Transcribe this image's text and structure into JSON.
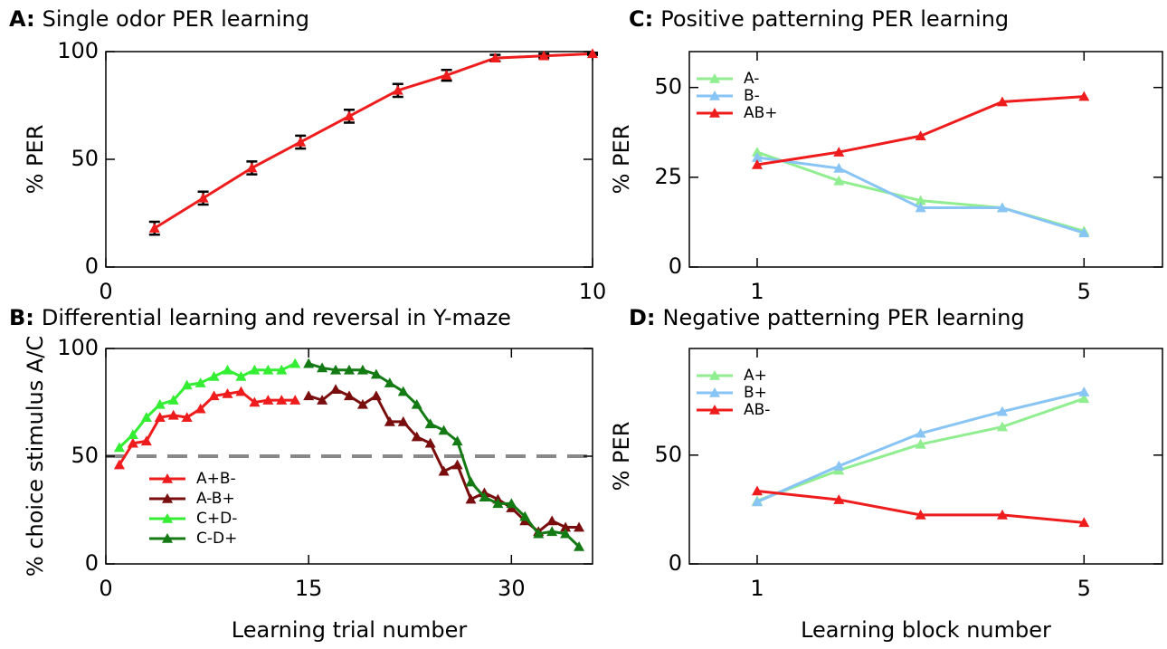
{
  "chart_data": [
    {
      "type": "line",
      "panel": "A:",
      "title": "Single odor PER learning",
      "y_label": "% PER",
      "x": [
        1,
        2,
        3,
        4,
        5,
        6,
        7,
        8,
        9,
        10
      ],
      "series": [
        {
          "name": "PER",
          "color": "#ee1c1c",
          "values": [
            18,
            32,
            46,
            58,
            70,
            82,
            89,
            97,
            98,
            99
          ],
          "errors": [
            3,
            3,
            3,
            3,
            3,
            3,
            2.5,
            1.5,
            1,
            0.5
          ]
        }
      ],
      "xlim": [
        0,
        10
      ],
      "xticks": [
        0,
        10
      ],
      "ylim": [
        0,
        100
      ],
      "yticks": [
        0,
        50,
        100
      ],
      "grid": false
    },
    {
      "type": "line",
      "panel": "B:",
      "title": "Differential learning and reversal in Y-maze",
      "y_label": "% choice stimulus A/C",
      "x_label": "Learning trial number",
      "x": [
        1,
        2,
        3,
        4,
        5,
        6,
        7,
        8,
        9,
        10,
        11,
        12,
        13,
        14,
        15,
        16,
        17,
        18,
        19,
        20,
        21,
        22,
        23,
        24,
        25,
        26,
        27,
        28,
        29,
        30,
        31,
        32,
        33,
        34,
        35
      ],
      "series": [
        {
          "name": "A+B-",
          "color": "#ee1c1c",
          "values": [
            46,
            56,
            57,
            68,
            69,
            68,
            72,
            78,
            79,
            80,
            75,
            76,
            76,
            76,
            null,
            null,
            null,
            null,
            null,
            null,
            null,
            null,
            null,
            null,
            null,
            null,
            null,
            null,
            null,
            null,
            null,
            null,
            null,
            null,
            null
          ]
        },
        {
          "name": "A-B+",
          "color": "#7a0e0e",
          "values": [
            null,
            null,
            null,
            null,
            null,
            null,
            null,
            null,
            null,
            null,
            null,
            null,
            null,
            null,
            78,
            76,
            81,
            78,
            74,
            78,
            66,
            66,
            59,
            56,
            43,
            46,
            30,
            33,
            30,
            26,
            20,
            15,
            20,
            17,
            17
          ]
        },
        {
          "name": "C+D-",
          "color": "#33ee33",
          "values": [
            54,
            60,
            68,
            74,
            76,
            83,
            84,
            87,
            90,
            87,
            90,
            90,
            90,
            93,
            null,
            null,
            null,
            null,
            null,
            null,
            null,
            null,
            null,
            null,
            null,
            null,
            null,
            null,
            null,
            null,
            null,
            null,
            null,
            null,
            null
          ]
        },
        {
          "name": "C-D+",
          "color": "#147a14",
          "values": [
            null,
            null,
            null,
            null,
            null,
            null,
            null,
            null,
            null,
            null,
            null,
            null,
            null,
            null,
            93,
            91,
            90,
            90,
            90,
            88,
            84,
            80,
            74,
            65,
            62,
            57,
            38,
            31,
            28,
            28,
            22,
            14,
            15,
            14,
            8
          ]
        }
      ],
      "reference_line": 50,
      "legend": "lower left",
      "xlim": [
        0,
        36
      ],
      "xticks": [
        0,
        15,
        30
      ],
      "ylim": [
        0,
        100
      ],
      "yticks": [
        0,
        50,
        100
      ],
      "grid": false
    },
    {
      "type": "line",
      "panel": "C:",
      "title": "Positive patterning PER learning",
      "y_label": "% PER",
      "x": [
        1,
        2,
        3,
        4,
        5
      ],
      "series": [
        {
          "name": "A-",
          "color": "#90ee90",
          "values": [
            32,
            24,
            18.5,
            16.5,
            10
          ]
        },
        {
          "name": "B-",
          "color": "#88c4f4",
          "values": [
            30.5,
            27.5,
            16.5,
            16.5,
            9.5
          ]
        },
        {
          "name": "AB+",
          "color": "#ee1c1c",
          "values": [
            28.5,
            32,
            36.5,
            46,
            47.5
          ]
        }
      ],
      "legend": "upper left",
      "xlim": [
        0.17,
        5.96
      ],
      "xticks": [
        1,
        5
      ],
      "ylim": [
        0,
        60
      ],
      "yticks": [
        0,
        25,
        50
      ],
      "grid": false
    },
    {
      "type": "line",
      "panel": "D:",
      "title": "Negative patterning PER learning",
      "y_label": "% PER",
      "x_label": "Learning block number",
      "x": [
        1,
        2,
        3,
        4,
        5
      ],
      "series": [
        {
          "name": "A+",
          "color": "#90ee90",
          "values": [
            29,
            43,
            55,
            63,
            76
          ]
        },
        {
          "name": "B+",
          "color": "#88c4f4",
          "values": [
            28.5,
            45,
            60,
            70,
            79
          ]
        },
        {
          "name": "AB-",
          "color": "#ee1c1c",
          "values": [
            33.5,
            29.5,
            22.5,
            22.5,
            19
          ]
        }
      ],
      "legend": "upper left",
      "xlim": [
        0.17,
        5.96
      ],
      "xticks": [
        1,
        5
      ],
      "ylim": [
        0,
        99
      ],
      "yticks": [
        0,
        50
      ],
      "grid": false
    }
  ]
}
